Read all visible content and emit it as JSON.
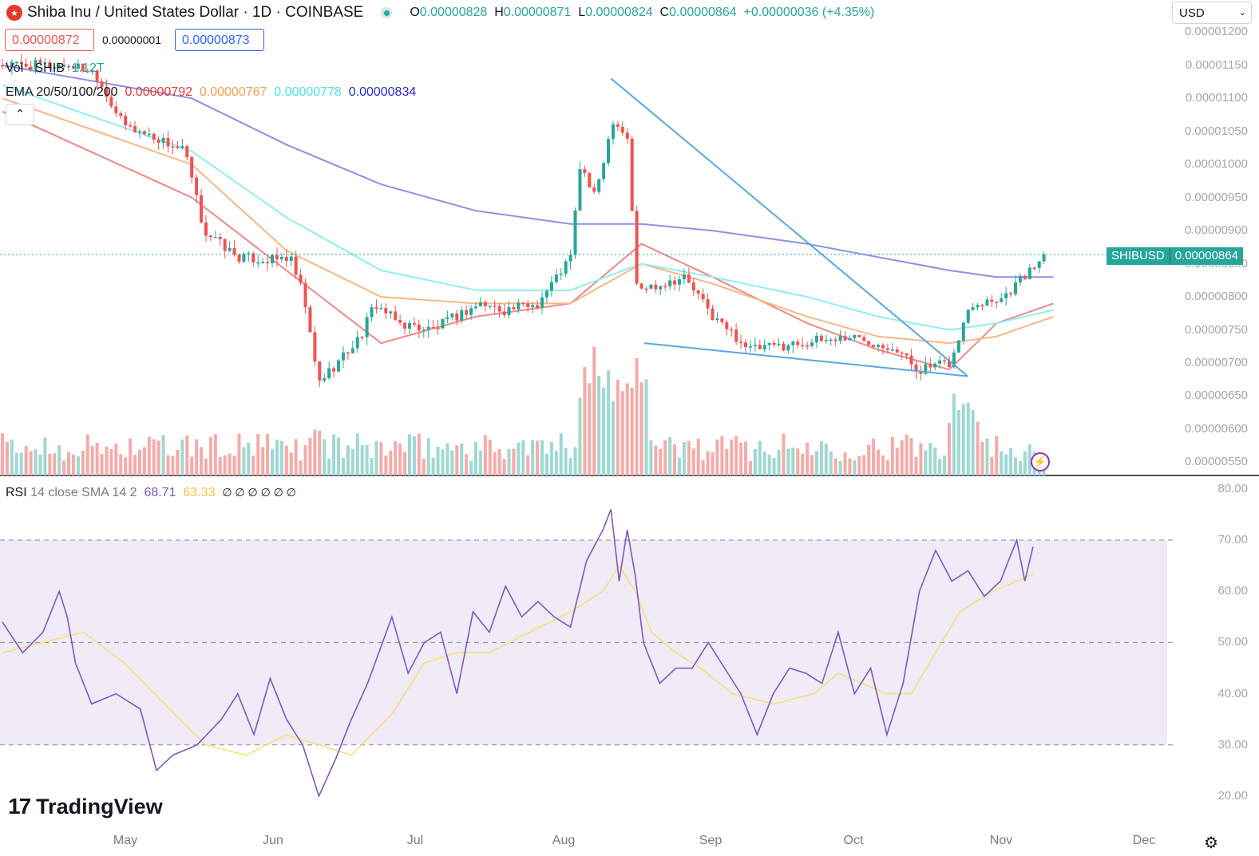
{
  "header": {
    "logo_icon": "shiba-inu-logo",
    "title": "Shiba Inu / United States Dollar · 1D · COINBASE",
    "ohlc": [
      {
        "k": "O",
        "v": "0.00000828"
      },
      {
        "k": "H",
        "v": "0.00000871"
      },
      {
        "k": "L",
        "v": "0.00000824"
      },
      {
        "k": "C",
        "v": "0.00000864"
      }
    ],
    "change": "+0.00000036 (+4.35%)",
    "currency": "USD",
    "sell_price": "0.00000872",
    "spread": "0.00000001",
    "buy_price": "0.00000873"
  },
  "legend": {
    "vol_label": "Vol · SHIB",
    "vol_value": "1.12T",
    "ema_label": "EMA 20/50/100/200",
    "ema_values": [
      {
        "v": "0.00000792",
        "color": "#e53935"
      },
      {
        "v": "0.00000767",
        "color": "#f5a04a"
      },
      {
        "v": "0.00000778",
        "color": "#4de1de"
      },
      {
        "v": "0.00000834",
        "color": "#2a2ad0"
      }
    ],
    "rsi_label": "RSI",
    "rsi_params": "14 close SMA 14 2",
    "rsi_value": "68.71",
    "rsi_sma_value": "63.33",
    "rsi_nan": "∅ ∅ ∅ ∅ ∅ ∅"
  },
  "price_tag": {
    "symbol": "SHIBUSD",
    "price": "0.00000864"
  },
  "price_axis": [
    "0.00001200",
    "0.00001150",
    "0.00001100",
    "0.00001050",
    "0.00001000",
    "0.00000950",
    "0.00000900",
    "0.00000850",
    "0.00000800",
    "0.00000750",
    "0.00000700",
    "0.00000650",
    "0.00000600",
    "0.00000550"
  ],
  "rsi_axis": [
    "80.00",
    "70.00",
    "60.00",
    "50.00",
    "40.00",
    "30.00",
    "20.00"
  ],
  "time_axis": [
    "May",
    "Jun",
    "Jul",
    "Aug",
    "Sep",
    "Oct",
    "Nov",
    "Dec"
  ],
  "branding": "TradingView",
  "colors": {
    "up": "#26a69a",
    "down": "#ef5350",
    "rsi": "#7e57c2",
    "rsi_sma": "#f6e07a",
    "trend": "#5aa7e0",
    "ema200": "#7b7de8"
  },
  "chart_data": [
    {
      "type": "candlestick",
      "x_axis": [
        "May",
        "Jun",
        "Jul",
        "Aug",
        "Sep",
        "Oct",
        "Nov",
        "Dec"
      ],
      "ylim": [
        5.3e-06,
        1.21e-05
      ],
      "last_close": 8.64e-06,
      "price_path": [
        [
          "Apr 20",
          1.15e-05
        ],
        [
          "Apr 25",
          1.14e-05
        ],
        [
          "May 1",
          1.06e-05
        ],
        [
          "May 8",
          1.04e-05
        ],
        [
          "May 14",
          1.02e-05
        ],
        [
          "May 18",
          9e-06
        ],
        [
          "May 25",
          8.6e-06
        ],
        [
          "Jun 1",
          8.55e-06
        ],
        [
          "Jun 5",
          8.6e-06
        ],
        [
          "Jun 8",
          8e-06
        ],
        [
          "Jun 11",
          6.7e-06
        ],
        [
          "Jun 15",
          7e-06
        ],
        [
          "Jun 20",
          7.4e-06
        ],
        [
          "Jun 23",
          7.9e-06
        ],
        [
          "Jun 28",
          7.6e-06
        ],
        [
          "Jul 5",
          7.5e-06
        ],
        [
          "Jul 10",
          7.7e-06
        ],
        [
          "Jul 15",
          7.9e-06
        ],
        [
          "Jul 20",
          7.8e-06
        ],
        [
          "Jul 27",
          7.9e-06
        ],
        [
          "Aug 1",
          8.4e-06
        ],
        [
          "Aug 3",
          8.6e-06
        ],
        [
          "Aug 5",
          1e-05
        ],
        [
          "Aug 8",
          9.5e-06
        ],
        [
          "Aug 12",
          1.07e-05
        ],
        [
          "Aug 15",
          1.04e-05
        ],
        [
          "Aug 17",
          8.1e-06
        ],
        [
          "Aug 22",
          8.2e-06
        ],
        [
          "Aug 27",
          8.3e-06
        ],
        [
          "Sep 2",
          7.7e-06
        ],
        [
          "Sep 10",
          7.2e-06
        ],
        [
          "Sep 20",
          7.3e-06
        ],
        [
          "Oct 1",
          7.4e-06
        ],
        [
          "Oct 10",
          7.25e-06
        ],
        [
          "Oct 15",
          6.9e-06
        ],
        [
          "Oct 22",
          7e-06
        ],
        [
          "Oct 26",
          7.9e-06
        ],
        [
          "Nov 2",
          8e-06
        ],
        [
          "Nov 6",
          8.3e-06
        ],
        [
          "Nov 8",
          8.4e-06
        ],
        [
          "Nov 10",
          8.64e-06
        ]
      ],
      "ema": {
        "ema20": [
          [
            0,
            1.08e-05
          ],
          [
            40,
            9.5e-06
          ],
          [
            60,
            8.4e-06
          ],
          [
            80,
            7.3e-06
          ],
          [
            100,
            7.7e-06
          ],
          [
            120,
            7.9e-06
          ],
          [
            135,
            8.8e-06
          ],
          [
            150,
            8.3e-06
          ],
          [
            170,
            7.6e-06
          ],
          [
            185,
            7.2e-06
          ],
          [
            200,
            6.9e-06
          ],
          [
            210,
            7.6e-06
          ],
          [
            222,
            7.9e-06
          ]
        ],
        "ema50": [
          [
            0,
            1.1e-05
          ],
          [
            40,
            1e-05
          ],
          [
            60,
            8.7e-06
          ],
          [
            80,
            8e-06
          ],
          [
            100,
            7.9e-06
          ],
          [
            120,
            7.9e-06
          ],
          [
            135,
            8.5e-06
          ],
          [
            150,
            8.2e-06
          ],
          [
            170,
            7.7e-06
          ],
          [
            185,
            7.4e-06
          ],
          [
            200,
            7.3e-06
          ],
          [
            210,
            7.4e-06
          ],
          [
            222,
            7.7e-06
          ]
        ],
        "ema100": [
          [
            0,
            1.12e-05
          ],
          [
            40,
            1.02e-05
          ],
          [
            60,
            9.2e-06
          ],
          [
            80,
            8.4e-06
          ],
          [
            100,
            8.1e-06
          ],
          [
            120,
            8.1e-06
          ],
          [
            135,
            8.5e-06
          ],
          [
            150,
            8.3e-06
          ],
          [
            170,
            8e-06
          ],
          [
            185,
            7.7e-06
          ],
          [
            200,
            7.5e-06
          ],
          [
            210,
            7.6e-06
          ],
          [
            222,
            7.8e-06
          ]
        ],
        "ema200": [
          [
            0,
            1.15e-05
          ],
          [
            40,
            1.1e-05
          ],
          [
            60,
            1.03e-05
          ],
          [
            80,
            9.7e-06
          ],
          [
            100,
            9.3e-06
          ],
          [
            120,
            9.1e-06
          ],
          [
            135,
            9.1e-06
          ],
          [
            150,
            9e-06
          ],
          [
            170,
            8.8e-06
          ],
          [
            185,
            8.6e-06
          ],
          [
            200,
            8.4e-06
          ],
          [
            210,
            8.3e-06
          ],
          [
            222,
            8.3e-06
          ]
        ]
      },
      "trendlines": [
        {
          "from": [
            "Aug 11",
            1.13e-05
          ],
          "to": [
            "Oct 25",
            6.8e-06
          ]
        },
        {
          "from": [
            "Aug 18",
            7.3e-06
          ],
          "to": [
            "Oct 25",
            6.8e-06
          ]
        }
      ]
    },
    {
      "type": "line",
      "name": "RSI 14",
      "ylim": [
        15,
        82
      ],
      "bands": [
        30,
        50,
        70
      ],
      "rsi": [
        [
          0,
          54
        ],
        [
          5,
          48
        ],
        [
          10,
          52
        ],
        [
          14,
          60
        ],
        [
          16,
          55
        ],
        [
          18,
          46
        ],
        [
          22,
          38
        ],
        [
          28,
          40
        ],
        [
          34,
          37
        ],
        [
          38,
          25
        ],
        [
          42,
          28
        ],
        [
          48,
          30
        ],
        [
          54,
          35
        ],
        [
          58,
          40
        ],
        [
          62,
          32
        ],
        [
          66,
          43
        ],
        [
          70,
          35
        ],
        [
          74,
          30
        ],
        [
          78,
          20
        ],
        [
          82,
          27
        ],
        [
          86,
          35
        ],
        [
          90,
          42
        ],
        [
          96,
          55
        ],
        [
          100,
          44
        ],
        [
          104,
          50
        ],
        [
          108,
          52
        ],
        [
          112,
          40
        ],
        [
          116,
          56
        ],
        [
          120,
          52
        ],
        [
          124,
          61
        ],
        [
          128,
          55
        ],
        [
          132,
          58
        ],
        [
          136,
          55
        ],
        [
          140,
          53
        ],
        [
          144,
          66
        ],
        [
          148,
          72
        ],
        [
          150,
          76
        ],
        [
          152,
          62
        ],
        [
          154,
          72
        ],
        [
          156,
          63
        ],
        [
          158,
          50
        ],
        [
          162,
          42
        ],
        [
          166,
          45
        ],
        [
          170,
          45
        ],
        [
          174,
          50
        ],
        [
          178,
          45
        ],
        [
          182,
          40
        ],
        [
          186,
          32
        ],
        [
          190,
          40
        ],
        [
          194,
          45
        ],
        [
          198,
          44
        ],
        [
          202,
          42
        ],
        [
          206,
          52
        ],
        [
          210,
          40
        ],
        [
          214,
          45
        ],
        [
          218,
          32
        ],
        [
          222,
          42
        ],
        [
          226,
          60
        ],
        [
          230,
          68
        ],
        [
          234,
          62
        ],
        [
          238,
          64
        ],
        [
          242,
          59
        ],
        [
          246,
          62
        ],
        [
          250,
          70
        ],
        [
          252,
          62
        ],
        [
          254,
          68.7
        ]
      ],
      "rsi_sma": [
        [
          0,
          48
        ],
        [
          10,
          50
        ],
        [
          20,
          52
        ],
        [
          30,
          46
        ],
        [
          40,
          38
        ],
        [
          50,
          30
        ],
        [
          60,
          28
        ],
        [
          70,
          32
        ],
        [
          78,
          30
        ],
        [
          86,
          28
        ],
        [
          96,
          36
        ],
        [
          104,
          46
        ],
        [
          112,
          48
        ],
        [
          120,
          48
        ],
        [
          130,
          52
        ],
        [
          140,
          56
        ],
        [
          148,
          60
        ],
        [
          152,
          65
        ],
        [
          156,
          60
        ],
        [
          160,
          52
        ],
        [
          166,
          48
        ],
        [
          172,
          45
        ],
        [
          180,
          40
        ],
        [
          190,
          38
        ],
        [
          200,
          40
        ],
        [
          206,
          44
        ],
        [
          212,
          42
        ],
        [
          218,
          40
        ],
        [
          224,
          40
        ],
        [
          230,
          48
        ],
        [
          236,
          56
        ],
        [
          244,
          60
        ],
        [
          254,
          63.3
        ]
      ]
    }
  ]
}
